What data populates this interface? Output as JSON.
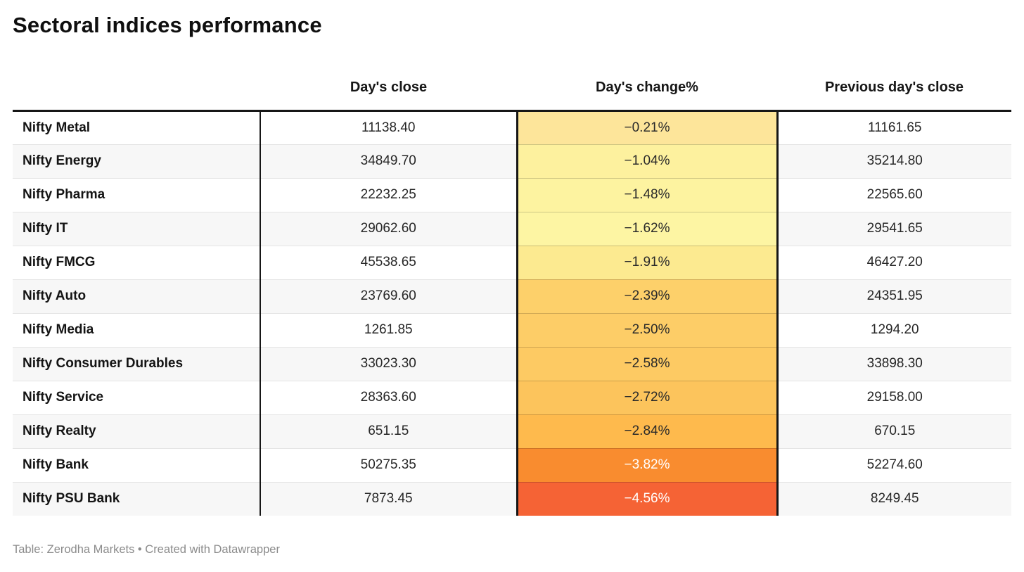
{
  "title": "Sectoral indices performance",
  "table": {
    "headers": [
      "",
      "Day's close",
      "Day's change%",
      "Previous day's close"
    ],
    "rows": [
      {
        "name": "Nifty Metal",
        "close": "11138.40",
        "change": "−0.21%",
        "prev": "11161.65",
        "bg": "#fde59a",
        "fg": "#2a2a2a"
      },
      {
        "name": "Nifty Energy",
        "close": "34849.70",
        "change": "−1.04%",
        "prev": "35214.80",
        "bg": "#fdf19e",
        "fg": "#2a2a2a"
      },
      {
        "name": "Nifty Pharma",
        "close": "22232.25",
        "change": "−1.48%",
        "prev": "22565.60",
        "bg": "#fdf3a0",
        "fg": "#2a2a2a"
      },
      {
        "name": "Nifty IT",
        "close": "29062.60",
        "change": "−1.62%",
        "prev": "29541.65",
        "bg": "#fdf5a3",
        "fg": "#2a2a2a"
      },
      {
        "name": "Nifty FMCG",
        "close": "45538.65",
        "change": "−1.91%",
        "prev": "46427.20",
        "bg": "#fcea90",
        "fg": "#2a2a2a"
      },
      {
        "name": "Nifty Auto",
        "close": "23769.60",
        "change": "−2.39%",
        "prev": "24351.95",
        "bg": "#fdd06a",
        "fg": "#2a2a2a"
      },
      {
        "name": "Nifty Media",
        "close": "1261.85",
        "change": "−2.50%",
        "prev": "1294.20",
        "bg": "#fdcd67",
        "fg": "#2a2a2a"
      },
      {
        "name": "Nifty Consumer Durables",
        "close": "33023.30",
        "change": "−2.58%",
        "prev": "33898.30",
        "bg": "#fdca63",
        "fg": "#2a2a2a"
      },
      {
        "name": "Nifty Service",
        "close": "28363.60",
        "change": "−2.72%",
        "prev": "29158.00",
        "bg": "#fcc45c",
        "fg": "#2a2a2a"
      },
      {
        "name": "Nifty Realty",
        "close": "651.15",
        "change": "−2.84%",
        "prev": "670.15",
        "bg": "#feba4d",
        "fg": "#2a2a2a"
      },
      {
        "name": "Nifty Bank",
        "close": "50275.35",
        "change": "−3.82%",
        "prev": "52274.60",
        "bg": "#f98c2f",
        "fg": "#ffffff"
      },
      {
        "name": "Nifty PSU Bank",
        "close": "7873.45",
        "change": "−4.56%",
        "prev": "8249.45",
        "bg": "#f56335",
        "fg": "#ffffff"
      }
    ]
  },
  "footer": {
    "text": "Table: Zerodha Markets • Created with Datawrapper"
  },
  "chart_data": {
    "type": "table",
    "title": "Sectoral indices performance",
    "columns": [
      "Day's close",
      "Day's change%",
      "Previous day's close"
    ],
    "rows": [
      {
        "index": "Nifty Metal",
        "days_close": 11138.4,
        "days_change_pct": -0.21,
        "previous_days_close": 11161.65
      },
      {
        "index": "Nifty Energy",
        "days_close": 34849.7,
        "days_change_pct": -1.04,
        "previous_days_close": 35214.8
      },
      {
        "index": "Nifty Pharma",
        "days_close": 22232.25,
        "days_change_pct": -1.48,
        "previous_days_close": 22565.6
      },
      {
        "index": "Nifty IT",
        "days_close": 29062.6,
        "days_change_pct": -1.62,
        "previous_days_close": 29541.65
      },
      {
        "index": "Nifty FMCG",
        "days_close": 45538.65,
        "days_change_pct": -1.91,
        "previous_days_close": 46427.2
      },
      {
        "index": "Nifty Auto",
        "days_close": 23769.6,
        "days_change_pct": -2.39,
        "previous_days_close": 24351.95
      },
      {
        "index": "Nifty Media",
        "days_close": 1261.85,
        "days_change_pct": -2.5,
        "previous_days_close": 1294.2
      },
      {
        "index": "Nifty Consumer Durables",
        "days_close": 33023.3,
        "days_change_pct": -2.58,
        "previous_days_close": 33898.3
      },
      {
        "index": "Nifty Service",
        "days_close": 28363.6,
        "days_change_pct": -2.72,
        "previous_days_close": 29158.0
      },
      {
        "index": "Nifty Realty",
        "days_close": 651.15,
        "days_change_pct": -2.84,
        "previous_days_close": 670.15
      },
      {
        "index": "Nifty Bank",
        "days_close": 50275.35,
        "days_change_pct": -3.82,
        "previous_days_close": 52274.6
      },
      {
        "index": "Nifty PSU Bank",
        "days_close": 7873.45,
        "days_change_pct": -4.56,
        "previous_days_close": 8249.45
      }
    ],
    "heatmap_column": "Day's change%",
    "heatmap_colors": [
      "#fdf5a3",
      "#fcea90",
      "#fdd06a",
      "#feba4d",
      "#f98c2f",
      "#f56335"
    ],
    "value_range_pct": [
      -4.56,
      -0.21
    ]
  }
}
